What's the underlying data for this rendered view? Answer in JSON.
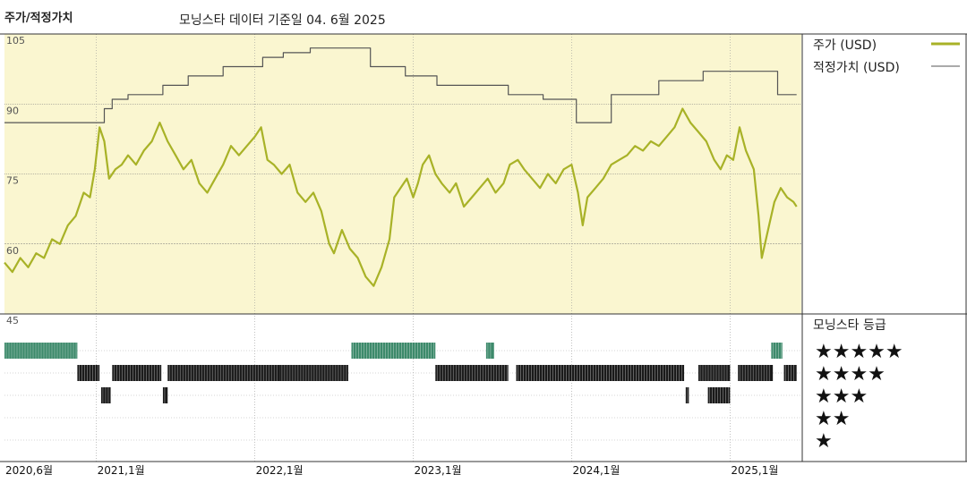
{
  "header": {
    "title": "주가/적정가치",
    "subtitle": "모닝스타 데이터 기준일 04. 6월 2025"
  },
  "legend": {
    "price_label": "주가 (USD)",
    "fair_value_label": "적정가치 (USD)",
    "rating_label": "모닝스타 등급",
    "stars": [
      "★★★★★",
      "★★★★",
      "★★★",
      "★★",
      "★"
    ]
  },
  "colors": {
    "price": "#a8b227",
    "fair_value": "#555555",
    "panel_bg": "#faf6d0",
    "five_star": "#3d8a6b",
    "rating_bar": "#1a1a1a"
  },
  "chart_data": {
    "type": "line",
    "title": "주가/적정가치",
    "subtitle": "모닝스타 데이터 기준일 04. 6월 2025",
    "x_ticks": [
      "2020,6월",
      "2021,1월",
      "2022,1월",
      "2023,1월",
      "2024,1월",
      "2025,1월"
    ],
    "x_tick_dates": [
      2020.42,
      2021.0,
      2022.0,
      2023.0,
      2024.0,
      2025.0
    ],
    "x_range": [
      2020.42,
      2025.45
    ],
    "y_ticks": [
      105,
      90,
      75,
      60,
      45
    ],
    "ylim": [
      45,
      105
    ],
    "grid": true,
    "legend_position": "right",
    "series": [
      {
        "name": "주가 (USD)",
        "points": [
          [
            2020.42,
            56
          ],
          [
            2020.47,
            54
          ],
          [
            2020.52,
            57
          ],
          [
            2020.57,
            55
          ],
          [
            2020.62,
            58
          ],
          [
            2020.67,
            57
          ],
          [
            2020.72,
            61
          ],
          [
            2020.77,
            60
          ],
          [
            2020.82,
            64
          ],
          [
            2020.87,
            66
          ],
          [
            2020.92,
            71
          ],
          [
            2020.96,
            70
          ],
          [
            2020.99,
            76
          ],
          [
            2021.02,
            85
          ],
          [
            2021.05,
            82
          ],
          [
            2021.08,
            74
          ],
          [
            2021.12,
            76
          ],
          [
            2021.16,
            77
          ],
          [
            2021.2,
            79
          ],
          [
            2021.25,
            77
          ],
          [
            2021.3,
            80
          ],
          [
            2021.35,
            82
          ],
          [
            2021.4,
            86
          ],
          [
            2021.45,
            82
          ],
          [
            2021.5,
            79
          ],
          [
            2021.55,
            76
          ],
          [
            2021.6,
            78
          ],
          [
            2021.65,
            73
          ],
          [
            2021.7,
            71
          ],
          [
            2021.75,
            74
          ],
          [
            2021.8,
            77
          ],
          [
            2021.85,
            81
          ],
          [
            2021.9,
            79
          ],
          [
            2021.95,
            81
          ],
          [
            2022.0,
            83
          ],
          [
            2022.04,
            85
          ],
          [
            2022.08,
            78
          ],
          [
            2022.12,
            77
          ],
          [
            2022.17,
            75
          ],
          [
            2022.22,
            77
          ],
          [
            2022.27,
            71
          ],
          [
            2022.32,
            69
          ],
          [
            2022.37,
            71
          ],
          [
            2022.42,
            67
          ],
          [
            2022.47,
            60
          ],
          [
            2022.5,
            58
          ],
          [
            2022.55,
            63
          ],
          [
            2022.6,
            59
          ],
          [
            2022.65,
            57
          ],
          [
            2022.7,
            53
          ],
          [
            2022.75,
            51
          ],
          [
            2022.8,
            55
          ],
          [
            2022.85,
            61
          ],
          [
            2022.88,
            70
          ],
          [
            2022.92,
            72
          ],
          [
            2022.96,
            74
          ],
          [
            2023.0,
            70
          ],
          [
            2023.03,
            73
          ],
          [
            2023.06,
            77
          ],
          [
            2023.1,
            79
          ],
          [
            2023.14,
            75
          ],
          [
            2023.18,
            73
          ],
          [
            2023.23,
            71
          ],
          [
            2023.27,
            73
          ],
          [
            2023.32,
            68
          ],
          [
            2023.37,
            70
          ],
          [
            2023.42,
            72
          ],
          [
            2023.47,
            74
          ],
          [
            2023.52,
            71
          ],
          [
            2023.57,
            73
          ],
          [
            2023.61,
            77
          ],
          [
            2023.66,
            78
          ],
          [
            2023.7,
            76
          ],
          [
            2023.75,
            74
          ],
          [
            2023.8,
            72
          ],
          [
            2023.85,
            75
          ],
          [
            2023.9,
            73
          ],
          [
            2023.95,
            76
          ],
          [
            2024.0,
            77
          ],
          [
            2024.04,
            71
          ],
          [
            2024.07,
            64
          ],
          [
            2024.1,
            70
          ],
          [
            2024.15,
            72
          ],
          [
            2024.2,
            74
          ],
          [
            2024.25,
            77
          ],
          [
            2024.3,
            78
          ],
          [
            2024.35,
            79
          ],
          [
            2024.4,
            81
          ],
          [
            2024.45,
            80
          ],
          [
            2024.5,
            82
          ],
          [
            2024.55,
            81
          ],
          [
            2024.6,
            83
          ],
          [
            2024.65,
            85
          ],
          [
            2024.7,
            89
          ],
          [
            2024.75,
            86
          ],
          [
            2024.8,
            84
          ],
          [
            2024.85,
            82
          ],
          [
            2024.9,
            78
          ],
          [
            2024.94,
            76
          ],
          [
            2024.98,
            79
          ],
          [
            2025.02,
            78
          ],
          [
            2025.06,
            85
          ],
          [
            2025.1,
            80
          ],
          [
            2025.15,
            76
          ],
          [
            2025.18,
            66
          ],
          [
            2025.2,
            57
          ],
          [
            2025.24,
            63
          ],
          [
            2025.28,
            69
          ],
          [
            2025.32,
            72
          ],
          [
            2025.36,
            70
          ],
          [
            2025.4,
            69
          ],
          [
            2025.42,
            68
          ]
        ]
      },
      {
        "name": "적정가치 (USD)",
        "step": true,
        "points": [
          [
            2020.42,
            86
          ],
          [
            2021.05,
            86
          ],
          [
            2021.05,
            89
          ],
          [
            2021.1,
            89
          ],
          [
            2021.1,
            91
          ],
          [
            2021.2,
            91
          ],
          [
            2021.2,
            92
          ],
          [
            2021.42,
            92
          ],
          [
            2021.42,
            94
          ],
          [
            2021.58,
            94
          ],
          [
            2021.58,
            96
          ],
          [
            2021.8,
            96
          ],
          [
            2021.8,
            98
          ],
          [
            2022.05,
            98
          ],
          [
            2022.05,
            100
          ],
          [
            2022.18,
            100
          ],
          [
            2022.18,
            101
          ],
          [
            2022.35,
            101
          ],
          [
            2022.35,
            102
          ],
          [
            2022.73,
            102
          ],
          [
            2022.73,
            98
          ],
          [
            2022.95,
            98
          ],
          [
            2022.95,
            96
          ],
          [
            2023.15,
            96
          ],
          [
            2023.15,
            94
          ],
          [
            2023.6,
            94
          ],
          [
            2023.6,
            92
          ],
          [
            2023.82,
            92
          ],
          [
            2023.82,
            91
          ],
          [
            2024.03,
            91
          ],
          [
            2024.03,
            86
          ],
          [
            2024.25,
            86
          ],
          [
            2024.25,
            92
          ],
          [
            2024.55,
            92
          ],
          [
            2024.55,
            95
          ],
          [
            2024.83,
            95
          ],
          [
            2024.83,
            97
          ],
          [
            2025.3,
            97
          ],
          [
            2025.3,
            92
          ],
          [
            2025.42,
            92
          ]
        ]
      }
    ],
    "rating_rows": [
      {
        "stars": 5,
        "segments": [
          [
            2020.42,
            2020.88
          ],
          [
            2022.61,
            2023.14
          ],
          [
            2023.46,
            2023.51
          ],
          [
            2025.26,
            2025.33
          ]
        ]
      },
      {
        "stars": 4,
        "segments": [
          [
            2020.88,
            2021.02
          ],
          [
            2021.1,
            2021.41
          ],
          [
            2021.45,
            2022.16
          ],
          [
            2022.16,
            2022.59
          ],
          [
            2023.14,
            2023.6
          ],
          [
            2023.65,
            2024.71
          ],
          [
            2024.8,
            2025.0
          ],
          [
            2025.05,
            2025.27
          ],
          [
            2025.34,
            2025.42
          ]
        ]
      },
      {
        "stars": 3,
        "segments": [
          [
            2021.03,
            2021.09
          ],
          [
            2021.42,
            2021.45
          ],
          [
            2024.72,
            2024.74
          ],
          [
            2024.86,
            2025.0
          ]
        ]
      },
      {
        "stars": 2,
        "segments": []
      },
      {
        "stars": 1,
        "segments": []
      }
    ]
  }
}
